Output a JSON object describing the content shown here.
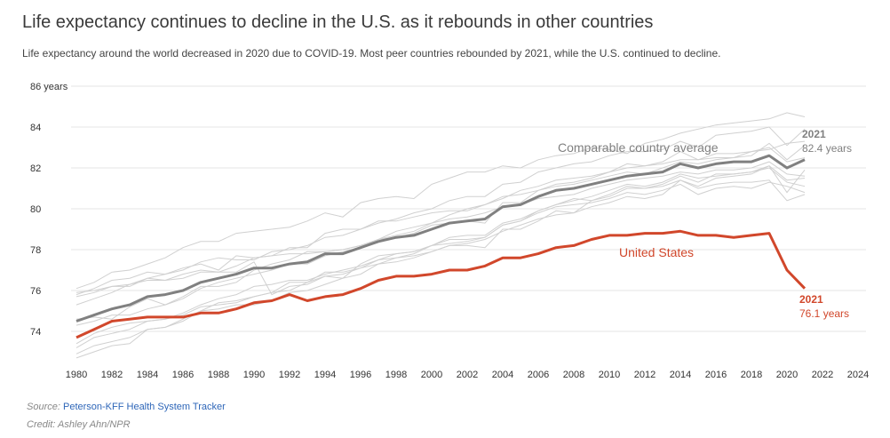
{
  "header": {
    "title": "Life expectancy continues to decline in the U.S. as it rebounds in other countries",
    "subtitle": "Life expectancy around the world decreased in 2020 due to COVID-19. Most peer countries rebounded by 2021, while the U.S. continued to decline."
  },
  "footer": {
    "source_label": "Source:",
    "source_link": "Peterson-KFF Health System Tracker",
    "credit": "Credit: Ashley Ahn/NPR"
  },
  "colors": {
    "us": "#d1472b",
    "average": "#808080",
    "peers": "#d0d0d0",
    "grid": "#e6e6e6"
  },
  "chart_data": {
    "type": "line",
    "title": "Life expectancy continues to decline in the U.S. as it rebounds in other countries",
    "xlabel": "",
    "ylabel": "",
    "xlim": [
      1980,
      2024
    ],
    "ylim": [
      73,
      86
    ],
    "grid": true,
    "x_ticks": [
      "1980",
      "1982",
      "1984",
      "1986",
      "1988",
      "1990",
      "1992",
      "1994",
      "1996",
      "1998",
      "2000",
      "2002",
      "2004",
      "2006",
      "2008",
      "2010",
      "2012",
      "2014",
      "2016",
      "2018",
      "2020",
      "2022",
      "2024"
    ],
    "y_ticks": [
      {
        "value": 86,
        "label": "86 years"
      },
      {
        "value": 84,
        "label": "84"
      },
      {
        "value": 82,
        "label": "82"
      },
      {
        "value": 80,
        "label": "80"
      },
      {
        "value": 78,
        "label": "78"
      },
      {
        "value": 76,
        "label": "76"
      },
      {
        "value": 74,
        "label": "74"
      }
    ],
    "x_start": 1980,
    "series": [
      {
        "name": "United States",
        "role": "us",
        "label": "United States",
        "end_year": "2021",
        "end_label": "76.1 years",
        "values": [
          73.7,
          74.1,
          74.5,
          74.6,
          74.7,
          74.7,
          74.7,
          74.9,
          74.9,
          75.1,
          75.4,
          75.5,
          75.8,
          75.5,
          75.7,
          75.8,
          76.1,
          76.5,
          76.7,
          76.7,
          76.8,
          77.0,
          77.0,
          77.2,
          77.6,
          77.6,
          77.8,
          78.1,
          78.2,
          78.5,
          78.7,
          78.7,
          78.8,
          78.8,
          78.9,
          78.7,
          78.7,
          78.6,
          78.7,
          78.8,
          77.0,
          76.1
        ]
      },
      {
        "name": "Comparable country average",
        "role": "average",
        "label": "Comparable country average",
        "end_year": "2021",
        "end_label": "82.4 years",
        "values": [
          74.5,
          74.8,
          75.1,
          75.3,
          75.7,
          75.8,
          76.0,
          76.4,
          76.6,
          76.8,
          77.1,
          77.1,
          77.3,
          77.4,
          77.8,
          77.8,
          78.1,
          78.4,
          78.6,
          78.7,
          79.0,
          79.3,
          79.4,
          79.5,
          80.1,
          80.2,
          80.6,
          80.9,
          81.0,
          81.2,
          81.4,
          81.6,
          81.7,
          81.8,
          82.2,
          82.0,
          82.2,
          82.3,
          82.3,
          82.6,
          82.0,
          82.4
        ]
      }
    ],
    "peer_series": [
      [
        76.1,
        76.4,
        76.9,
        77.0,
        77.3,
        77.6,
        78.1,
        78.4,
        78.4,
        78.8,
        78.9,
        79.0,
        79.1,
        79.4,
        79.8,
        79.6,
        80.3,
        80.5,
        80.6,
        80.5,
        81.2,
        81.5,
        81.8,
        81.8,
        82.1,
        82.0,
        82.4,
        82.6,
        82.7,
        83.0,
        82.9,
        82.7,
        83.2,
        83.4,
        83.7,
        83.9,
        84.1,
        84.2,
        84.3,
        84.4,
        84.7,
        84.5
      ],
      [
        75.7,
        75.9,
        76.2,
        76.3,
        76.6,
        76.8,
        77.0,
        77.4,
        77.6,
        77.5,
        77.5,
        77.9,
        78.0,
        78.2,
        78.6,
        78.7,
        79.0,
        79.3,
        79.5,
        79.8,
        80.0,
        80.4,
        80.6,
        80.6,
        81.2,
        81.3,
        81.8,
        82.0,
        82.2,
        82.3,
        82.6,
        82.8,
        82.8,
        82.9,
        83.3,
        83.0,
        83.6,
        83.7,
        83.8,
        84.0,
        83.1,
        83.9
      ],
      [
        75.8,
        76.1,
        76.5,
        76.6,
        76.9,
        76.8,
        77.1,
        77.3,
        77.0,
        77.7,
        77.6,
        77.7,
        78.1,
        78.1,
        78.8,
        79.0,
        79.0,
        79.4,
        79.4,
        79.6,
        79.8,
        79.9,
        79.9,
        80.2,
        80.6,
        80.7,
        80.9,
        81.1,
        81.2,
        81.4,
        81.6,
        81.8,
        81.7,
        82.0,
        82.3,
        82.2,
        82.4,
        82.5,
        82.6,
        83.2,
        82.4,
        83.1
      ],
      [
        75.3,
        75.6,
        75.9,
        76.3,
        76.5,
        76.5,
        76.6,
        76.9,
        76.9,
        77.2,
        77.6,
        77.7,
        77.8,
        77.8,
        77.9,
        78.0,
        78.2,
        78.5,
        78.7,
        78.9,
        79.3,
        79.5,
        79.6,
        79.8,
        80.1,
        80.2,
        80.5,
        80.6,
        80.7,
        81.0,
        81.2,
        81.4,
        81.5,
        81.6,
        81.8,
        81.7,
        81.9,
        81.9,
        82.0,
        82.3,
        81.7,
        81.6
      ],
      [
        74.3,
        74.5,
        74.8,
        74.8,
        75.1,
        75.3,
        75.6,
        76.1,
        76.4,
        76.6,
        76.8,
        77.0,
        77.3,
        77.3,
        77.7,
        77.9,
        78.1,
        78.5,
        78.6,
        78.8,
        79.2,
        79.3,
        79.4,
        79.3,
        80.3,
        80.3,
        80.9,
        81.2,
        81.3,
        81.5,
        81.8,
        82.2,
        82.1,
        82.3,
        82.8,
        82.4,
        82.7,
        82.7,
        82.8,
        83.0,
        82.3,
        82.5
      ],
      [
        74.6,
        74.7,
        74.6,
        75.2,
        75.6,
        75.3,
        75.7,
        76.2,
        76.2,
        76.4,
        77.0,
        77.3,
        77.5,
        77.9,
        77.9,
        78.0,
        78.2,
        78.5,
        78.9,
        79.1,
        79.3,
        79.7,
        80.0,
        80.2,
        80.5,
        80.9,
        81.1,
        81.4,
        81.5,
        81.6,
        81.8,
        82.0,
        82.1,
        82.2,
        82.4,
        82.4,
        82.5,
        82.5,
        82.8,
        82.9,
        83.2,
        83.3
      ],
      [
        72.9,
        73.3,
        73.5,
        73.7,
        74.1,
        74.2,
        74.5,
        75.0,
        75.1,
        75.3,
        75.3,
        75.5,
        75.9,
        76.0,
        76.3,
        76.6,
        76.8,
        77.3,
        77.6,
        77.8,
        78.2,
        78.5,
        78.5,
        78.6,
        79.2,
        79.4,
        79.8,
        80.1,
        80.2,
        80.3,
        80.5,
        80.8,
        80.7,
        80.9,
        81.2,
        80.7,
        81.0,
        81.1,
        81.0,
        81.3,
        81.1,
        80.8
      ],
      [
        73.2,
        73.7,
        73.9,
        74.1,
        74.5,
        74.6,
        74.8,
        75.2,
        75.3,
        75.4,
        75.7,
        75.9,
        76.4,
        76.4,
        76.9,
        76.9,
        77.1,
        77.3,
        77.4,
        77.6,
        77.9,
        78.2,
        78.3,
        78.5,
        78.9,
        79.2,
        79.5,
        79.7,
        79.8,
        80.4,
        80.6,
        81.0,
        81.0,
        81.1,
        81.4,
        81.0,
        81.2,
        81.3,
        81.3,
        81.4,
        80.4,
        80.7
      ],
      [
        73.4,
        73.9,
        74.2,
        74.4,
        74.5,
        74.6,
        74.9,
        75.3,
        75.6,
        75.8,
        76.2,
        76.3,
        76.5,
        76.5,
        76.8,
        77.0,
        77.2,
        77.5,
        77.6,
        77.7,
        77.9,
        78.2,
        78.2,
        78.1,
        79.0,
        79.0,
        79.4,
        79.9,
        79.8,
        80.1,
        80.3,
        80.6,
        80.5,
        80.7,
        81.4,
        81.1,
        81.5,
        81.6,
        81.7,
        82.1,
        80.8,
        81.9
      ],
      [
        72.7,
        73.0,
        73.3,
        73.4,
        74.1,
        74.2,
        74.6,
        75.0,
        75.4,
        75.5,
        75.7,
        75.9,
        76.0,
        76.4,
        76.7,
        76.8,
        77.1,
        77.5,
        77.8,
        77.9,
        78.2,
        78.6,
        78.7,
        78.7,
        79.3,
        79.5,
        79.9,
        80.2,
        80.5,
        80.4,
        80.7,
        81.1,
        81.0,
        81.2,
        81.6,
        81.3,
        81.7,
        81.7,
        81.8,
        82.0,
        81.3,
        81.1
      ],
      [
        75.9,
        76.0,
        76.2,
        76.2,
        76.6,
        76.5,
        76.8,
        77.0,
        76.9,
        76.9,
        77.4,
        75.8,
        76.2,
        76.3,
        76.7,
        76.6,
        77.3,
        77.7,
        77.8,
        77.9,
        78.2,
        78.3,
        78.4,
        78.6,
        79.2,
        79.4,
        79.9,
        80.2,
        80.4,
        80.6,
        80.9,
        81.2,
        81.1,
        81.3,
        81.7,
        81.5,
        81.6,
        81.7,
        81.8,
        82.1,
        81.4,
        81.5
      ]
    ]
  }
}
